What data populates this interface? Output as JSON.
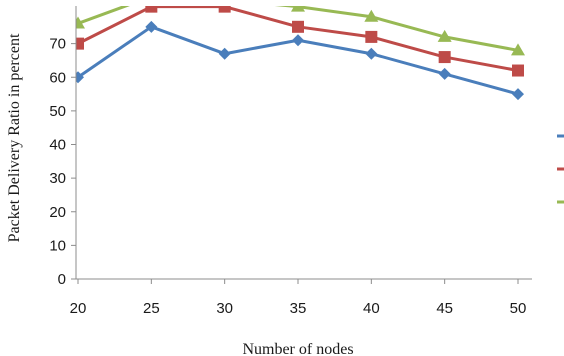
{
  "chart_data": {
    "type": "line",
    "xlabel": "Number of nodes",
    "ylabel": "Packet Delivery Ratio in percent",
    "x": [
      20,
      25,
      30,
      35,
      40,
      45,
      50
    ],
    "yticks": [
      0,
      10,
      20,
      30,
      40,
      50,
      60,
      70
    ],
    "ylim": [
      0,
      80
    ],
    "grid": false,
    "legend_position": "right",
    "series": [
      {
        "values": [
          60,
          75,
          67,
          71,
          67,
          61,
          55
        ],
        "color": "#4a7ebb",
        "marker": "diamond"
      },
      {
        "values": [
          70,
          81,
          81,
          75,
          72,
          66,
          62
        ],
        "color": "#be4b48",
        "marker": "square"
      },
      {
        "values": [
          76,
          84,
          83,
          81,
          78,
          72,
          68
        ],
        "color": "#98b954",
        "marker": "triangle"
      }
    ]
  }
}
